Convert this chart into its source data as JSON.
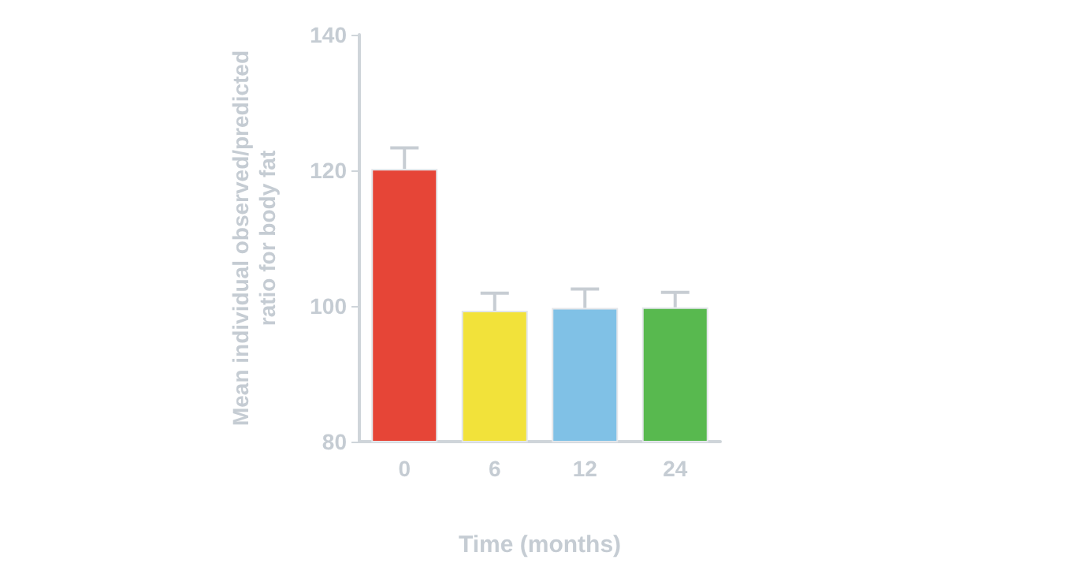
{
  "chart_data": {
    "type": "bar",
    "xlabel": "Time (months)",
    "ylabel": "Mean individual observed/predicted\nratio for body fat",
    "categories": [
      "0",
      "6",
      "12",
      "24"
    ],
    "values": [
      120.2,
      99.3,
      99.7,
      99.8
    ],
    "colors": [
      "#e64537",
      "#f2e23a",
      "#80c1e6",
      "#58b94f"
    ],
    "errors": [
      [
        120.2,
        123.3
      ],
      [
        99.3,
        101.9
      ],
      [
        99.7,
        102.5
      ],
      [
        99.8,
        102
      ]
    ],
    "ylim": [
      80,
      140
    ],
    "yticks": [
      80,
      100,
      120,
      140
    ],
    "grid": false
  }
}
